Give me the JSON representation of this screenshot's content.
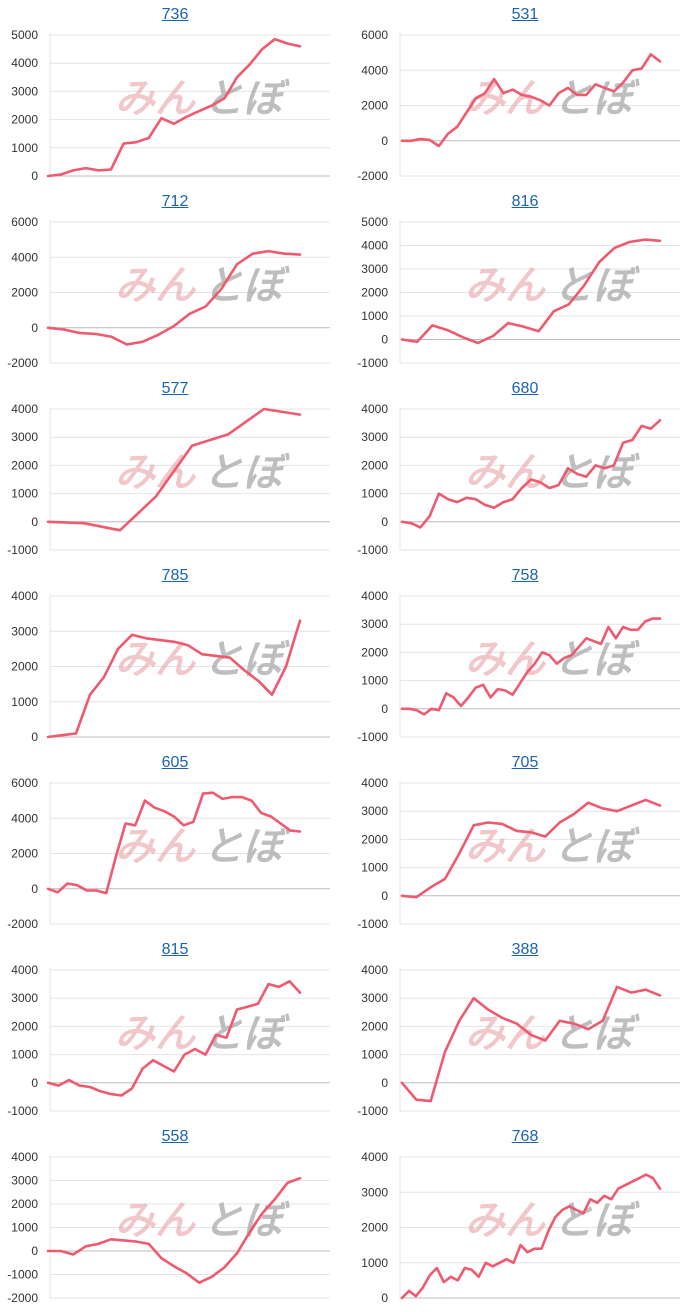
{
  "watermark": {
    "left": "みん",
    "right": "とぼ"
  },
  "line_color": "#ee5a6f",
  "title_color": "#1a63b0",
  "chart_data": [
    {
      "type": "line",
      "title": "736",
      "ylim": [
        0,
        5000
      ],
      "yticks": [
        0,
        1000,
        2000,
        3000,
        4000,
        5000
      ],
      "values": [
        0,
        50,
        200,
        280,
        200,
        230,
        1150,
        1200,
        1350,
        2050,
        1850,
        2100,
        2300,
        2500,
        2750,
        3500,
        3950,
        4500,
        4850,
        4700,
        4600
      ]
    },
    {
      "type": "line",
      "title": "531",
      "ylim": [
        -2000,
        6000
      ],
      "yticks": [
        -2000,
        0,
        2000,
        4000,
        6000
      ],
      "values": [
        0,
        0,
        100,
        50,
        -300,
        400,
        800,
        1600,
        2400,
        2700,
        3500,
        2700,
        2900,
        2600,
        2500,
        2300,
        2000,
        2700,
        3000,
        2600,
        2600,
        3200,
        3000,
        2800,
        3300,
        4000,
        4100,
        4900,
        4500
      ]
    },
    {
      "type": "line",
      "title": "712",
      "ylim": [
        -2000,
        6000
      ],
      "yticks": [
        -2000,
        0,
        2000,
        4000,
        6000
      ],
      "values": [
        0,
        -100,
        -300,
        -350,
        -500,
        -950,
        -800,
        -400,
        100,
        800,
        1200,
        2200,
        3600,
        4200,
        4350,
        4200,
        4150
      ]
    },
    {
      "type": "line",
      "title": "816",
      "ylim": [
        -1000,
        5000
      ],
      "yticks": [
        -1000,
        0,
        1000,
        2000,
        3000,
        4000,
        5000
      ],
      "values": [
        0,
        -100,
        600,
        400,
        100,
        -150,
        150,
        700,
        550,
        350,
        1200,
        1500,
        2300,
        3300,
        3900,
        4150,
        4250,
        4200
      ]
    },
    {
      "type": "line",
      "title": "577",
      "ylim": [
        -1000,
        4000
      ],
      "yticks": [
        -1000,
        0,
        1000,
        2000,
        3000,
        4000
      ],
      "values": [
        0,
        -50,
        -300,
        900,
        2700,
        3100,
        4000,
        3800
      ]
    },
    {
      "type": "line",
      "title": "680",
      "ylim": [
        -1000,
        4000
      ],
      "yticks": [
        -1000,
        0,
        1000,
        2000,
        3000,
        4000
      ],
      "values": [
        0,
        -50,
        -200,
        200,
        1000,
        800,
        700,
        850,
        800,
        600,
        500,
        700,
        800,
        1200,
        1500,
        1400,
        1200,
        1300,
        1900,
        1700,
        1600,
        2000,
        1900,
        2000,
        2800,
        2900,
        3400,
        3300,
        3600
      ]
    },
    {
      "type": "line",
      "title": "785",
      "ylim": [
        0,
        4000
      ],
      "yticks": [
        0,
        1000,
        2000,
        3000,
        4000
      ],
      "values": [
        0,
        50,
        100,
        1200,
        1700,
        2500,
        2900,
        2800,
        2750,
        2700,
        2600,
        2350,
        2300,
        2250,
        1900,
        1600,
        1200,
        2000,
        3300
      ]
    },
    {
      "type": "line",
      "title": "758",
      "ylim": [
        -1000,
        4000
      ],
      "yticks": [
        -1000,
        0,
        1000,
        2000,
        3000,
        4000
      ],
      "values": [
        0,
        0,
        -50,
        -200,
        0,
        -50,
        550,
        400,
        100,
        400,
        750,
        850,
        400,
        700,
        650,
        500,
        900,
        1300,
        1600,
        2000,
        1900,
        1600,
        1800,
        1900,
        2200,
        2500,
        2400,
        2300,
        2900,
        2500,
        2900,
        2800,
        2800,
        3100,
        3200,
        3200
      ]
    },
    {
      "type": "line",
      "title": "605",
      "ylim": [
        -2000,
        6000
      ],
      "yticks": [
        -2000,
        0,
        2000,
        4000,
        6000
      ],
      "values": [
        0,
        -200,
        300,
        200,
        -100,
        -100,
        -250,
        1800,
        3700,
        3600,
        5000,
        4600,
        4400,
        4100,
        3600,
        3800,
        5400,
        5450,
        5100,
        5200,
        5200,
        5000,
        4300,
        4100,
        3700,
        3300,
        3250
      ]
    },
    {
      "type": "line",
      "title": "705",
      "ylim": [
        -1000,
        4000
      ],
      "yticks": [
        -1000,
        0,
        1000,
        2000,
        3000,
        4000
      ],
      "values": [
        0,
        -50,
        300,
        600,
        1500,
        2500,
        2600,
        2550,
        2300,
        2250,
        2100,
        2600,
        2900,
        3300,
        3100,
        3000,
        3200,
        3400,
        3200
      ]
    },
    {
      "type": "line",
      "title": "815",
      "ylim": [
        -1000,
        4000
      ],
      "yticks": [
        -1000,
        0,
        1000,
        2000,
        3000,
        4000
      ],
      "values": [
        0,
        -100,
        100,
        -100,
        -150,
        -300,
        -400,
        -450,
        -200,
        500,
        800,
        600,
        400,
        1000,
        1200,
        1000,
        1700,
        1600,
        2600,
        2700,
        2800,
        3500,
        3400,
        3600,
        3200
      ]
    },
    {
      "type": "line",
      "title": "388",
      "ylim": [
        -1000,
        4000
      ],
      "yticks": [
        -1000,
        0,
        1000,
        2000,
        3000,
        4000
      ],
      "values": [
        0,
        -600,
        -650,
        1100,
        2200,
        3000,
        2600,
        2300,
        2100,
        1700,
        1500,
        2200,
        2100,
        1900,
        2200,
        3400,
        3200,
        3300,
        3100
      ]
    },
    {
      "type": "line",
      "title": "558",
      "ylim": [
        -2000,
        4000
      ],
      "yticks": [
        -2000,
        -1000,
        0,
        1000,
        2000,
        3000,
        4000
      ],
      "values": [
        0,
        0,
        -150,
        200,
        300,
        500,
        450,
        400,
        300,
        -300,
        -650,
        -950,
        -1350,
        -1100,
        -700,
        -100,
        800,
        1600,
        2200,
        2900,
        3100
      ]
    },
    {
      "type": "line",
      "title": "768",
      "ylim": [
        0,
        4000
      ],
      "yticks": [
        0,
        1000,
        2000,
        3000,
        4000
      ],
      "values": [
        0,
        200,
        50,
        300,
        650,
        850,
        450,
        600,
        500,
        850,
        800,
        600,
        1000,
        900,
        1000,
        1100,
        1000,
        1500,
        1300,
        1400,
        1400,
        1900,
        2300,
        2500,
        2600,
        2500,
        2400,
        2800,
        2700,
        2900,
        2800,
        3100,
        3200,
        3300,
        3400,
        3500,
        3400,
        3100
      ]
    }
  ]
}
